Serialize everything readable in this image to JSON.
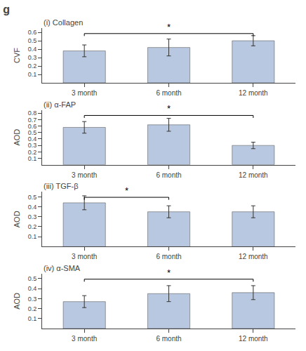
{
  "title": "g",
  "chart_data": [
    {
      "type": "bar",
      "title": "(i) Collagen",
      "ylabel": "CVF",
      "categories": [
        "3 month",
        "6 month",
        "12 month"
      ],
      "values": [
        0.38,
        0.42,
        0.5
      ],
      "errors": [
        0.07,
        0.1,
        0.06
      ],
      "color": "#b8c8e0",
      "grid": false,
      "ylim": [
        0,
        0.65
      ],
      "yticks": [
        0.1,
        0.2,
        0.3,
        0.4,
        0.5,
        0.6
      ],
      "annotations": [
        {
          "text": "*",
          "from": "3 month",
          "to": "12 month"
        }
      ]
    },
    {
      "type": "bar",
      "title": "(ii) α-FAP",
      "ylabel": "AOD",
      "categories": [
        "3 month",
        "6 month",
        "12 month"
      ],
      "values": [
        0.58,
        0.62,
        0.3
      ],
      "errors": [
        0.09,
        0.1,
        0.05
      ],
      "color": "#b8c8e0",
      "grid": false,
      "ylim": [
        0,
        0.85
      ],
      "yticks": [
        0.1,
        0.2,
        0.3,
        0.4,
        0.5,
        0.6,
        0.7,
        0.8
      ],
      "annotations": [
        {
          "text": "*",
          "from": "3 month",
          "to": "12 month"
        }
      ]
    },
    {
      "type": "bar",
      "title": "(iii) TGF-β",
      "ylabel": "AOD",
      "categories": [
        "3 month",
        "6 month",
        "12 month"
      ],
      "values": [
        0.44,
        0.35,
        0.35
      ],
      "errors": [
        0.07,
        0.06,
        0.06
      ],
      "color": "#b8c8e0",
      "grid": false,
      "ylim": [
        0,
        0.55
      ],
      "yticks": [
        0.1,
        0.2,
        0.3,
        0.4,
        0.5
      ],
      "annotations": [
        {
          "text": "*",
          "from": "3 month",
          "to": "6 month"
        }
      ]
    },
    {
      "type": "bar",
      "title": "(iv) α-SMA",
      "ylabel": "AOD",
      "categories": [
        "3 month",
        "6 month",
        "12 month"
      ],
      "values": [
        0.27,
        0.35,
        0.36
      ],
      "errors": [
        0.06,
        0.08,
        0.07
      ],
      "color": "#b8c8e0",
      "grid": false,
      "ylim": [
        0,
        0.55
      ],
      "yticks": [
        0.1,
        0.2,
        0.3,
        0.4,
        0.5
      ],
      "annotations": [
        {
          "text": "*",
          "from": "3 month",
          "to": "12 month"
        }
      ]
    }
  ]
}
